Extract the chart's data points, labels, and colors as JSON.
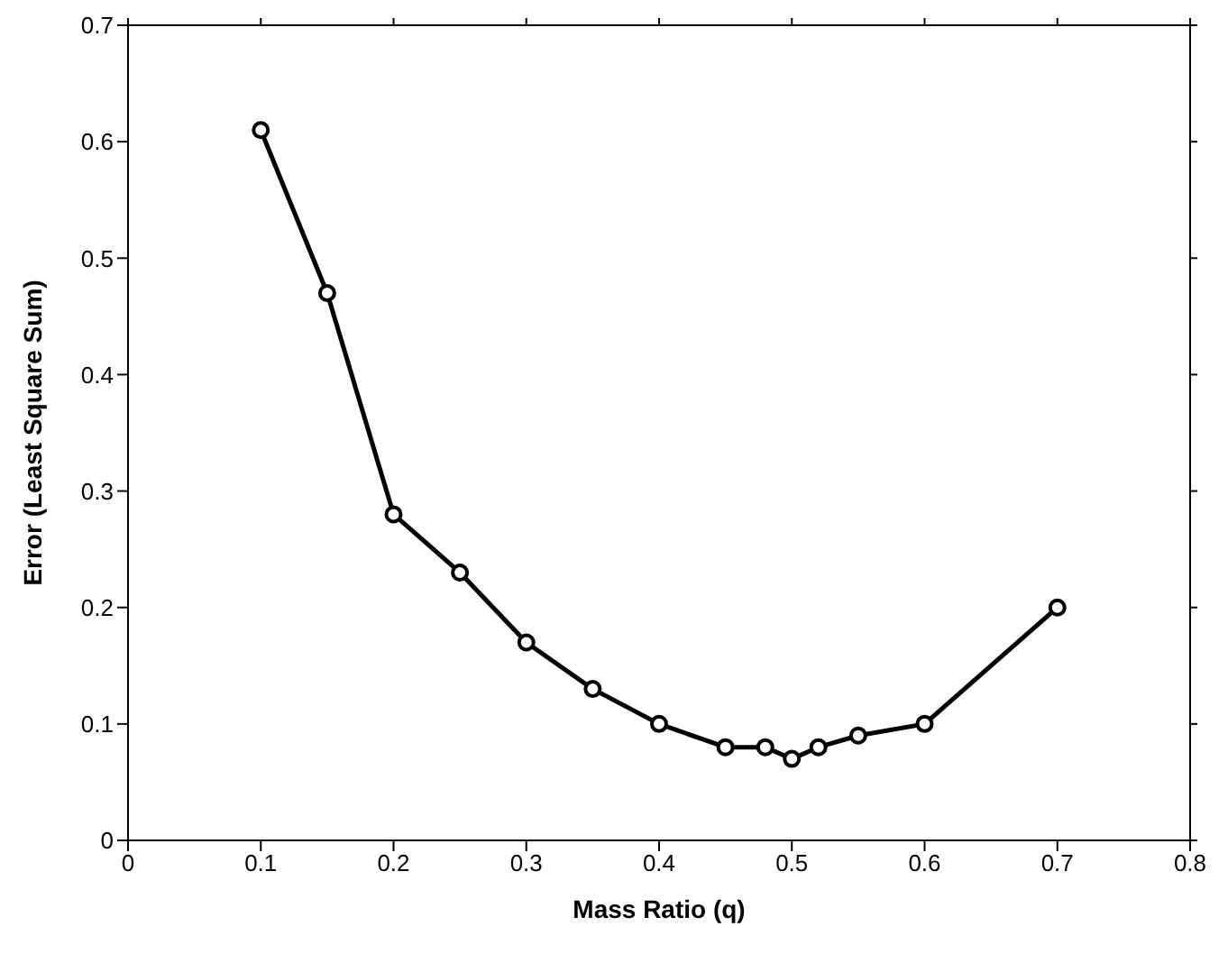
{
  "chart_data": {
    "type": "line",
    "xlabel": "Mass Ratio (q)",
    "ylabel": "Error (Least Square Sum)",
    "x": [
      0.1,
      0.15,
      0.2,
      0.25,
      0.3,
      0.35,
      0.4,
      0.45,
      0.48,
      0.5,
      0.52,
      0.55,
      0.6,
      0.7
    ],
    "series": [
      {
        "color": "#000000",
        "values": [
          0.61,
          0.47,
          0.28,
          0.23,
          0.17,
          0.13,
          0.1,
          0.08,
          0.08,
          0.07,
          0.08,
          0.09,
          0.1,
          0.2
        ]
      }
    ],
    "xlim": [
      0,
      0.8
    ],
    "xticks": [
      0,
      0.1,
      0.2,
      0.3,
      0.4,
      0.5,
      0.6,
      0.7,
      0.8
    ],
    "ylim": [
      0,
      0.7
    ],
    "yticks": [
      0,
      0.1,
      0.2,
      0.3,
      0.4,
      0.5,
      0.6,
      0.7
    ],
    "marker": "circle",
    "line_style": "solid"
  }
}
